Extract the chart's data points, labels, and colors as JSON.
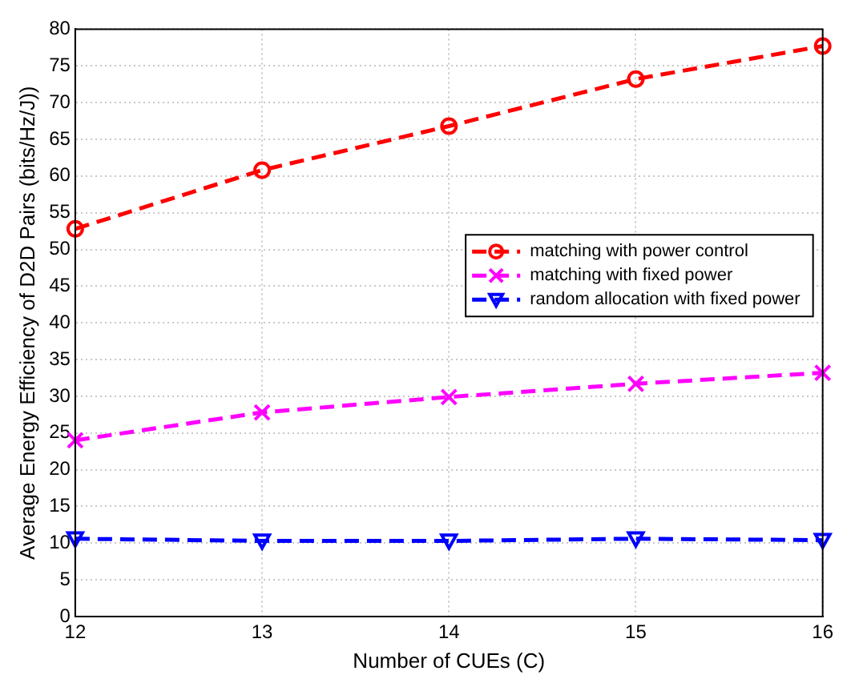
{
  "chart_data": {
    "type": "line",
    "xlabel": "Number of CUEs (C)",
    "ylabel": "Average Energy Efficiency of D2D Pairs (bits/Hz/J))",
    "x": [
      12,
      13,
      14,
      15,
      16
    ],
    "series": [
      {
        "name": "matching with power control",
        "color": "#ff0000",
        "marker": "circle",
        "values": [
          52.8,
          60.8,
          66.8,
          73.2,
          77.7
        ]
      },
      {
        "name": "matching with fixed power",
        "color": "#ff00ff",
        "marker": "cross",
        "values": [
          24,
          27.8,
          29.9,
          31.7,
          33.2
        ]
      },
      {
        "name": "random allocation with fixed power",
        "color": "#0000ff",
        "marker": "triangle",
        "values": [
          10.6,
          10.3,
          10.3,
          10.6,
          10.4
        ]
      }
    ],
    "xlim": [
      12,
      16
    ],
    "xticks": [
      12,
      13,
      14,
      15,
      16
    ],
    "ylim": [
      0,
      80
    ],
    "yticks": [
      0,
      5,
      10,
      15,
      20,
      25,
      30,
      35,
      40,
      45,
      50,
      55,
      60,
      65,
      70,
      75,
      80
    ],
    "grid": true,
    "legend": "right",
    "line_style": "dashed"
  }
}
